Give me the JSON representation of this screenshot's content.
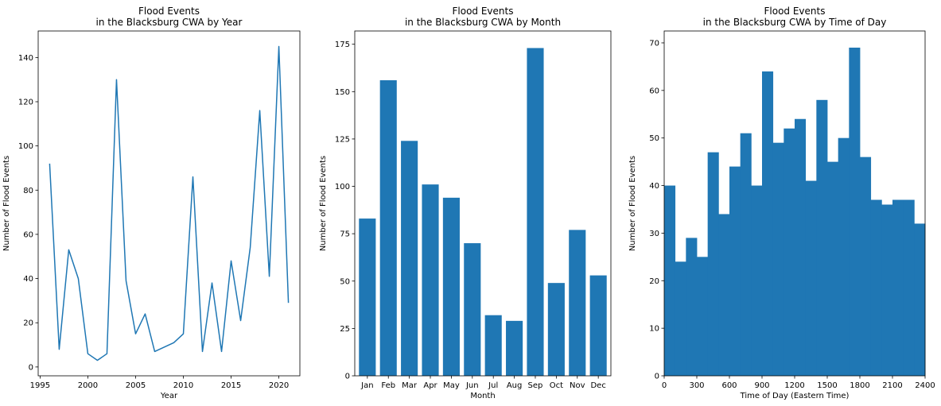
{
  "chart_data": [
    {
      "type": "line",
      "title": "Flood Events\nin the Blacksburg CWA by Year",
      "title_lines": [
        "Flood Events",
        "in the Blacksburg CWA by Year"
      ],
      "xlabel": "Year",
      "ylabel": "Number of Flood Events",
      "xlim": [
        1994.8,
        2022.2
      ],
      "ylim": [
        -4,
        152
      ],
      "xticks": [
        1995,
        2000,
        2005,
        2010,
        2015,
        2020
      ],
      "xtick_labels": [
        "1995",
        "2000",
        "2005",
        "2010",
        "2015",
        "2020"
      ],
      "yticks": [
        0,
        20,
        40,
        60,
        80,
        100,
        120,
        140
      ],
      "ytick_labels": [
        "0",
        "20",
        "40",
        "60",
        "80",
        "100",
        "120",
        "140"
      ],
      "x": [
        1996,
        1997,
        1998,
        1999,
        2000,
        2001,
        2002,
        2003,
        2004,
        2005,
        2006,
        2007,
        2009,
        2010,
        2011,
        2012,
        2013,
        2014,
        2015,
        2016,
        2017,
        2018,
        2019,
        2020,
        2021
      ],
      "y": [
        92,
        8,
        53,
        40,
        6,
        3,
        6,
        130,
        39,
        15,
        24,
        7,
        11,
        15,
        86,
        7,
        38,
        7,
        48,
        21,
        54,
        116,
        41,
        145,
        29
      ],
      "color": "#1f77b4",
      "grid": false
    },
    {
      "type": "bar",
      "title": "Flood Events\nin the Blacksburg CWA by Month",
      "title_lines": [
        "Flood Events",
        "in the Blacksburg CWA by Month"
      ],
      "xlabel": "Month",
      "ylabel": "Number of Flood Events",
      "categories": [
        "Jan",
        "Feb",
        "Mar",
        "Apr",
        "May",
        "Jun",
        "Jul",
        "Aug",
        "Sep",
        "Oct",
        "Nov",
        "Dec"
      ],
      "values": [
        83,
        156,
        124,
        101,
        94,
        70,
        32,
        29,
        173,
        49,
        77,
        53
      ],
      "ylim": [
        0,
        182
      ],
      "yticks": [
        0,
        25,
        50,
        75,
        100,
        125,
        150,
        175
      ],
      "ytick_labels": [
        "0",
        "25",
        "50",
        "75",
        "100",
        "125",
        "150",
        "175"
      ],
      "color": "#1f77b4",
      "grid": false
    },
    {
      "type": "bar",
      "title": "Flood Events\nin the Blacksburg CWA by Time of Day",
      "title_lines": [
        "Flood Events",
        "in the Blacksburg CWA by Time of Day"
      ],
      "xlabel": "Time of Day (Eastern Time)",
      "ylabel": "Number of Flood Events",
      "bin_edges": [
        0,
        100,
        200,
        300,
        400,
        500,
        600,
        700,
        800,
        900,
        1000,
        1100,
        1200,
        1300,
        1400,
        1500,
        1600,
        1700,
        1800,
        1900,
        2000,
        2100,
        2200,
        2300,
        2400
      ],
      "values": [
        40,
        24,
        29,
        25,
        47,
        34,
        44,
        51,
        40,
        64,
        49,
        52,
        54,
        41,
        58,
        45,
        50,
        69,
        46,
        37,
        36,
        37,
        37,
        32
      ],
      "xlim": [
        0,
        2400
      ],
      "ylim": [
        0,
        72.5
      ],
      "xticks": [
        0,
        300,
        600,
        900,
        1200,
        1500,
        1800,
        2100,
        2400
      ],
      "xtick_labels": [
        "0",
        "300",
        "600",
        "900",
        "1200",
        "1500",
        "1800",
        "2100",
        "2400"
      ],
      "yticks": [
        0,
        10,
        20,
        30,
        40,
        50,
        60,
        70
      ],
      "ytick_labels": [
        "0",
        "10",
        "20",
        "30",
        "40",
        "50",
        "60",
        "70"
      ],
      "color": "#1f77b4",
      "grid": false
    }
  ]
}
